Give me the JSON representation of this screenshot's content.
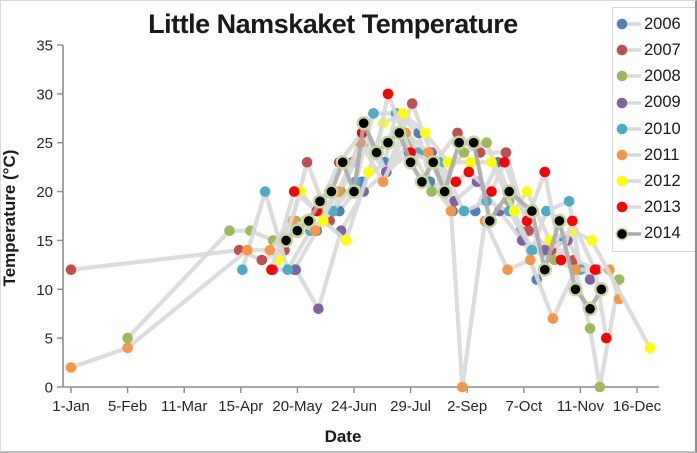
{
  "chart_data": {
    "type": "line",
    "title": "Little Namskaket Temperature",
    "xlabel": "Date",
    "ylabel": "Temperature (°C)",
    "ylim": [
      0,
      35
    ],
    "yticks": [
      0,
      5,
      10,
      15,
      20,
      25,
      30,
      35
    ],
    "x_unit": "day_of_year",
    "xlim_days": [
      1,
      365
    ],
    "xtick_days": [
      1,
      36,
      71,
      106,
      141,
      176,
      211,
      246,
      281,
      316,
      351
    ],
    "xtick_labels": [
      "1-Jan",
      "5-Feb",
      "11-Mar",
      "15-Apr",
      "20-May",
      "24-Jun",
      "29-Jul",
      "2-Sep",
      "7-Oct",
      "11-Nov",
      "16-Dec"
    ],
    "grid": false,
    "legend_position": "right",
    "style": {
      "connector_line_color": "#d9d9d9",
      "connector_line_color_2014": "#ababab",
      "axis_color": "#8c8c8c",
      "marker_outline_2014": "#c3d69b"
    },
    "series": [
      {
        "name": "2006",
        "color": "#4F81BD",
        "points": [
          [
            125,
            12
          ],
          [
            139,
            12
          ],
          [
            153,
            16
          ],
          [
            167,
            18
          ],
          [
            181,
            21
          ],
          [
            195,
            23
          ],
          [
            202,
            28
          ],
          [
            216,
            26
          ],
          [
            223,
            21
          ],
          [
            237,
            18
          ],
          [
            251,
            18
          ],
          [
            265,
            23
          ],
          [
            279,
            16
          ],
          [
            289,
            11
          ],
          [
            303,
            15
          ]
        ]
      },
      {
        "name": "2007",
        "color": "#C0504D",
        "points": [
          [
            1,
            12
          ],
          [
            105,
            14
          ],
          [
            119,
            13
          ],
          [
            133,
            14
          ],
          [
            147,
            23
          ],
          [
            161,
            17
          ],
          [
            175,
            23
          ],
          [
            182,
            27
          ],
          [
            196,
            22
          ],
          [
            212,
            29
          ],
          [
            226,
            23
          ],
          [
            240,
            26
          ],
          [
            254,
            24
          ],
          [
            270,
            24
          ],
          [
            284,
            16
          ],
          [
            298,
            14
          ],
          [
            312,
            13
          ],
          [
            326,
            12
          ]
        ]
      },
      {
        "name": "2008",
        "color": "#9BBB59",
        "points": [
          [
            36,
            5
          ],
          [
            99,
            16
          ],
          [
            112,
            16
          ],
          [
            126,
            15
          ],
          [
            140,
            17
          ],
          [
            154,
            18
          ],
          [
            168,
            20
          ],
          [
            182,
            25
          ],
          [
            196,
            22
          ],
          [
            210,
            25
          ],
          [
            224,
            20
          ],
          [
            244,
            24
          ],
          [
            258,
            25
          ],
          [
            272,
            19
          ],
          [
            286,
            14
          ],
          [
            300,
            13
          ],
          [
            313,
            12
          ],
          [
            322,
            6
          ],
          [
            328,
            0
          ],
          [
            340,
            11
          ]
        ]
      },
      {
        "name": "2009",
        "color": "#8064A2",
        "points": [
          [
            126,
            12
          ],
          [
            140,
            12
          ],
          [
            154,
            8
          ],
          [
            168,
            16
          ],
          [
            182,
            20
          ],
          [
            196,
            22
          ],
          [
            210,
            24
          ],
          [
            224,
            24
          ],
          [
            238,
            19
          ],
          [
            252,
            21
          ],
          [
            266,
            18
          ],
          [
            280,
            15
          ],
          [
            294,
            14
          ],
          [
            308,
            15
          ],
          [
            322,
            11
          ]
        ]
      },
      {
        "name": "2010",
        "color": "#4BACC6",
        "points": [
          [
            107,
            12
          ],
          [
            121,
            20
          ],
          [
            135,
            12
          ],
          [
            149,
            16
          ],
          [
            163,
            18
          ],
          [
            177,
            21
          ],
          [
            188,
            28
          ],
          [
            202,
            28
          ],
          [
            216,
            24
          ],
          [
            230,
            23
          ],
          [
            244,
            18
          ],
          [
            258,
            19
          ],
          [
            272,
            18
          ],
          [
            286,
            14
          ],
          [
            295,
            18
          ],
          [
            309,
            19
          ],
          [
            316,
            12
          ]
        ]
      },
      {
        "name": "2011",
        "color": "#F79646",
        "points": [
          [
            1,
            2
          ],
          [
            36,
            4
          ],
          [
            110,
            14
          ],
          [
            124,
            14
          ],
          [
            138,
            17
          ],
          [
            152,
            16
          ],
          [
            166,
            20
          ],
          [
            180,
            25
          ],
          [
            194,
            21
          ],
          [
            208,
            26
          ],
          [
            222,
            24
          ],
          [
            236,
            18
          ],
          [
            243,
            0
          ],
          [
            257,
            17
          ],
          [
            271,
            12
          ],
          [
            285,
            13
          ],
          [
            299,
            7
          ],
          [
            313,
            12
          ],
          [
            334,
            12
          ],
          [
            340,
            9
          ]
        ]
      },
      {
        "name": "2012",
        "color": "#FFFF00",
        "points": [
          [
            129,
            13
          ],
          [
            143,
            20
          ],
          [
            157,
            17
          ],
          [
            171,
            15
          ],
          [
            185,
            22
          ],
          [
            194,
            27
          ],
          [
            206,
            28
          ],
          [
            220,
            26
          ],
          [
            234,
            23
          ],
          [
            248,
            23
          ],
          [
            261,
            23
          ],
          [
            275,
            18
          ],
          [
            283,
            20
          ],
          [
            297,
            15
          ],
          [
            311,
            16
          ],
          [
            323,
            15
          ],
          [
            359,
            4
          ]
        ]
      },
      {
        "name": "2013",
        "color": "#FF0000",
        "points": [
          [
            125,
            12
          ],
          [
            139,
            20
          ],
          [
            153,
            18
          ],
          [
            167,
            23
          ],
          [
            181,
            26
          ],
          [
            190,
            24
          ],
          [
            197,
            30
          ],
          [
            211,
            24
          ],
          [
            225,
            23
          ],
          [
            239,
            21
          ],
          [
            247,
            22
          ],
          [
            261,
            20
          ],
          [
            269,
            23
          ],
          [
            283,
            17
          ],
          [
            294,
            22
          ],
          [
            304,
            13
          ],
          [
            311,
            17
          ],
          [
            325,
            12
          ],
          [
            332,
            5
          ]
        ]
      },
      {
        "name": "2014",
        "color": "#000000",
        "outlined": true,
        "points": [
          [
            134,
            15
          ],
          [
            141,
            16
          ],
          [
            148,
            17
          ],
          [
            155,
            19
          ],
          [
            162,
            20
          ],
          [
            169,
            23
          ],
          [
            176,
            20
          ],
          [
            182,
            27
          ],
          [
            190,
            24
          ],
          [
            197,
            25
          ],
          [
            204,
            26
          ],
          [
            211,
            23
          ],
          [
            218,
            21
          ],
          [
            225,
            23
          ],
          [
            232,
            20
          ],
          [
            241,
            25
          ],
          [
            250,
            25
          ],
          [
            260,
            17
          ],
          [
            272,
            20
          ],
          [
            286,
            18
          ],
          [
            294,
            12
          ],
          [
            303,
            17
          ],
          [
            313,
            10
          ],
          [
            322,
            8
          ],
          [
            329,
            10
          ]
        ]
      }
    ]
  }
}
